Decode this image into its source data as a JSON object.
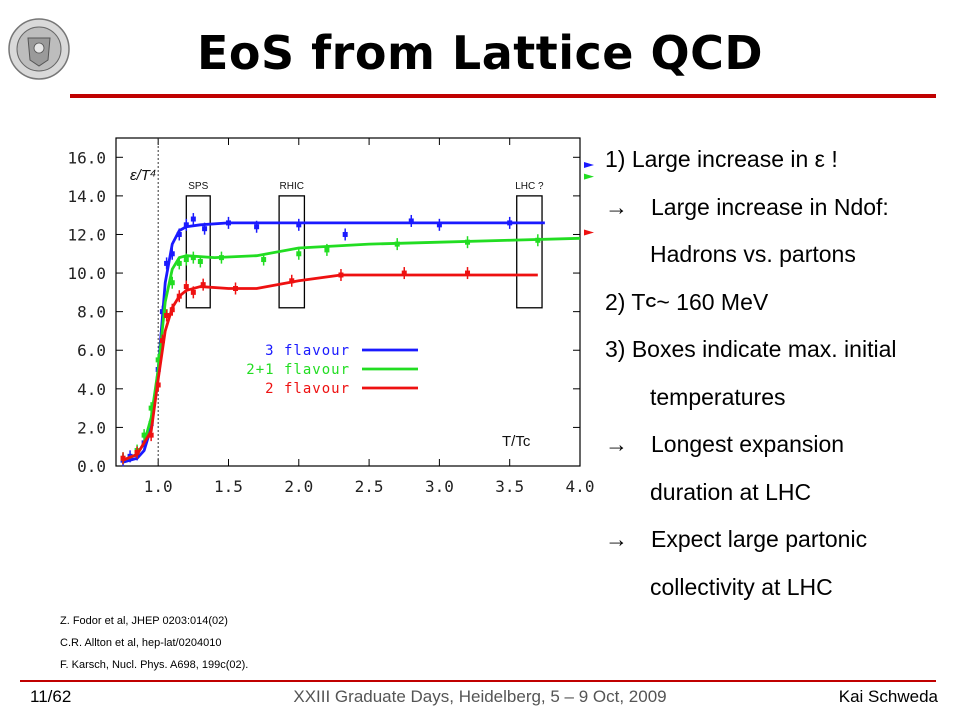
{
  "slide": {
    "title": "EoS from Lattice QCD",
    "bullets": [
      {
        "prefix": "",
        "text": "1) Large increase in ε !",
        "indent": false
      },
      {
        "prefix": "→",
        "text": "Large increase in Ndof:",
        "indent": false
      },
      {
        "prefix": "",
        "text": "Hadrons vs. partons",
        "indent": true
      },
      {
        "prefix": "",
        "text": "2) T",
        "sub": "C",
        "tail": " ~ 160 MeV",
        "indent": false
      },
      {
        "prefix": "",
        "text": "3) Boxes indicate max. initial",
        "indent": false
      },
      {
        "prefix": "",
        "text": "temperatures",
        "indent": true
      },
      {
        "prefix": "→",
        "text": "Longest expansion",
        "indent": false
      },
      {
        "prefix": "",
        "text": "duration at LHC",
        "indent": true
      },
      {
        "prefix": "→",
        "text": "Expect large partonic",
        "indent": false
      },
      {
        "prefix": "",
        "text": "collectivity at LHC",
        "indent": true
      }
    ],
    "references": [
      "Z. Fodor et al, JHEP 0203:014(02)",
      "C.R. Allton et al, hep-lat/0204010",
      "F. Karsch, Nucl. Phys. A698, 199c(02)."
    ],
    "footer": {
      "page": "11/62",
      "conference": "XXIII Graduate Days, Heidelberg, 5 – 9 Oct, 2009",
      "author": "Kai Schweda"
    },
    "colors": {
      "title_rule": "#c00000",
      "footer_rule": "#c00000"
    }
  },
  "chart_data": {
    "type": "line",
    "title": "",
    "ylabel": "ε/T⁴",
    "xlabel": "T/Tc",
    "xlim": [
      0.7,
      4.0
    ],
    "ylim": [
      0,
      17
    ],
    "xticks": [
      "1.0",
      "1.5",
      "2.0",
      "2.5",
      "3.0",
      "3.5",
      "4.0"
    ],
    "yticks": [
      "0.0",
      "2.0",
      "4.0",
      "6.0",
      "8.0",
      "10.0",
      "12.0",
      "14.0",
      "16.0"
    ],
    "vline_x": 1.0,
    "boxes": [
      {
        "label": "SPS",
        "x0": 1.2,
        "x1": 1.37,
        "y0": 8.2,
        "y1": 14.0
      },
      {
        "label": "RHIC",
        "x0": 1.86,
        "x1": 2.04,
        "y0": 8.2,
        "y1": 14.0
      },
      {
        "label": "LHC ?",
        "x0": 3.55,
        "x1": 3.73,
        "y0": 8.2,
        "y1": 14.0
      }
    ],
    "series": [
      {
        "name": "3 flavour",
        "color": "#1a1aff",
        "x": [
          0.75,
          0.85,
          0.9,
          0.95,
          1.0,
          1.05,
          1.1,
          1.15,
          1.2,
          1.3,
          1.5,
          1.7,
          2.0,
          2.3,
          2.7,
          3.0,
          3.5,
          3.75
        ],
        "y": [
          0.2,
          0.4,
          0.8,
          2.0,
          5.0,
          9.5,
          11.5,
          12.2,
          12.4,
          12.5,
          12.6,
          12.6,
          12.6,
          12.6,
          12.6,
          12.6,
          12.6,
          12.6
        ],
        "points_x": [
          0.75,
          0.8,
          0.85,
          0.9,
          0.95,
          1.0,
          1.03,
          1.06,
          1.1,
          1.15,
          1.2,
          1.25,
          1.33,
          1.5,
          1.7,
          2.0,
          2.33,
          2.8,
          3.0,
          3.5
        ],
        "points_y": [
          0.3,
          0.5,
          0.6,
          1.2,
          2.2,
          5.0,
          8.0,
          10.5,
          11.0,
          12.0,
          12.5,
          12.8,
          12.3,
          12.6,
          12.4,
          12.5,
          12.0,
          12.7,
          12.5,
          12.6
        ]
      },
      {
        "name": "2+1 flavour",
        "color": "#22dd22",
        "x": [
          0.75,
          0.85,
          0.9,
          0.95,
          1.0,
          1.05,
          1.1,
          1.15,
          1.2,
          1.4,
          1.7,
          2.0,
          2.5,
          3.0,
          3.5,
          4.0
        ],
        "y": [
          0.3,
          0.6,
          1.2,
          2.5,
          5.0,
          8.5,
          10.2,
          10.8,
          10.9,
          10.8,
          10.9,
          11.3,
          11.5,
          11.6,
          11.7,
          11.8
        ],
        "points_x": [
          0.75,
          0.85,
          0.9,
          0.95,
          1.0,
          1.05,
          1.1,
          1.15,
          1.2,
          1.25,
          1.3,
          1.45,
          1.75,
          2.0,
          2.2,
          2.7,
          3.2,
          3.7
        ],
        "points_y": [
          0.4,
          0.8,
          1.6,
          3.0,
          5.5,
          8.0,
          9.5,
          10.5,
          10.7,
          10.8,
          10.6,
          10.8,
          10.7,
          11.0,
          11.2,
          11.5,
          11.6,
          11.7
        ]
      },
      {
        "name": "2 flavour",
        "color": "#ee1111",
        "x": [
          0.75,
          0.85,
          0.95,
          1.0,
          1.05,
          1.1,
          1.15,
          1.2,
          1.3,
          1.5,
          1.7,
          2.0,
          2.3,
          2.7,
          3.0,
          3.4,
          3.7
        ],
        "y": [
          0.3,
          0.6,
          1.8,
          4.5,
          7.0,
          8.2,
          8.8,
          9.1,
          9.3,
          9.2,
          9.2,
          9.6,
          9.9,
          9.9,
          9.9,
          9.9,
          9.9
        ],
        "points_x": [
          0.75,
          0.85,
          0.95,
          1.0,
          1.03,
          1.06,
          1.1,
          1.15,
          1.2,
          1.25,
          1.32,
          1.55,
          1.95,
          2.3,
          2.75,
          3.2
        ],
        "points_y": [
          0.4,
          0.7,
          1.6,
          4.2,
          6.5,
          7.8,
          8.1,
          8.8,
          9.3,
          9.0,
          9.4,
          9.2,
          9.6,
          9.9,
          10.0,
          10.0
        ]
      }
    ],
    "legend_location": "center-right",
    "right_markers": [
      {
        "color": "#1a1aff",
        "y": 15.6
      },
      {
        "color": "#22dd22",
        "y": 15.0
      },
      {
        "color": "#ee1111",
        "y": 12.1
      }
    ]
  }
}
